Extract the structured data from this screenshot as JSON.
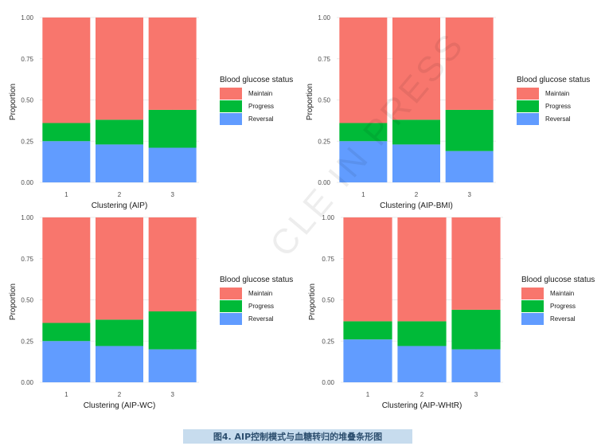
{
  "caption": "图4. AIP控制模式与血糖转归的堆叠条形图",
  "watermark": "CLE IN PRESS",
  "colors": {
    "Maintain": "#f8766d",
    "Progress": "#00ba38",
    "Reversal": "#619cff"
  },
  "chart_data": [
    {
      "type": "bar",
      "stacked": true,
      "xlabel": "Clustering (AIP)",
      "ylabel": "Proportion",
      "ylim": [
        0,
        1
      ],
      "yticks": [
        "0.00",
        "0.25",
        "0.50",
        "0.75",
        "1.00"
      ],
      "categories": [
        "1",
        "2",
        "3"
      ],
      "legend_title": "Blood glucose status",
      "legend_position": "right",
      "series": [
        {
          "name": "Reversal",
          "values": [
            0.25,
            0.23,
            0.21
          ]
        },
        {
          "name": "Progress",
          "values": [
            0.11,
            0.15,
            0.23
          ]
        },
        {
          "name": "Maintain",
          "values": [
            0.64,
            0.62,
            0.56
          ]
        }
      ]
    },
    {
      "type": "bar",
      "stacked": true,
      "xlabel": "Clustering (AIP-BMI)",
      "ylabel": "Proportion",
      "ylim": [
        0,
        1
      ],
      "yticks": [
        "0.00",
        "0.25",
        "0.50",
        "0.75",
        "1.00"
      ],
      "categories": [
        "1",
        "2",
        "3"
      ],
      "legend_title": "Blood glucose status",
      "legend_position": "right",
      "series": [
        {
          "name": "Reversal",
          "values": [
            0.25,
            0.23,
            0.19
          ]
        },
        {
          "name": "Progress",
          "values": [
            0.11,
            0.15,
            0.25
          ]
        },
        {
          "name": "Maintain",
          "values": [
            0.64,
            0.62,
            0.56
          ]
        }
      ]
    },
    {
      "type": "bar",
      "stacked": true,
      "xlabel": "Clustering (AIP-WC)",
      "ylabel": "Proportion",
      "ylim": [
        0,
        1
      ],
      "yticks": [
        "0.00",
        "0.25",
        "0.50",
        "0.75",
        "1.00"
      ],
      "categories": [
        "1",
        "2",
        "3"
      ],
      "legend_title": "Blood glucose status",
      "legend_position": "right",
      "series": [
        {
          "name": "Reversal",
          "values": [
            0.25,
            0.22,
            0.2
          ]
        },
        {
          "name": "Progress",
          "values": [
            0.11,
            0.16,
            0.23
          ]
        },
        {
          "name": "Maintain",
          "values": [
            0.64,
            0.62,
            0.57
          ]
        }
      ]
    },
    {
      "type": "bar",
      "stacked": true,
      "xlabel": "Clustering (AIP-WHtR)",
      "ylabel": "Proportion",
      "ylim": [
        0,
        1
      ],
      "yticks": [
        "0.00",
        "0.25",
        "0.50",
        "0.75",
        "1.00"
      ],
      "categories": [
        "1",
        "2",
        "3"
      ],
      "legend_title": "Blood glucose status",
      "legend_position": "right",
      "series": [
        {
          "name": "Reversal",
          "values": [
            0.26,
            0.22,
            0.2
          ]
        },
        {
          "name": "Progress",
          "values": [
            0.11,
            0.15,
            0.24
          ]
        },
        {
          "name": "Maintain",
          "values": [
            0.63,
            0.63,
            0.56
          ]
        }
      ]
    }
  ],
  "legend_order": [
    "Maintain",
    "Progress",
    "Reversal"
  ]
}
